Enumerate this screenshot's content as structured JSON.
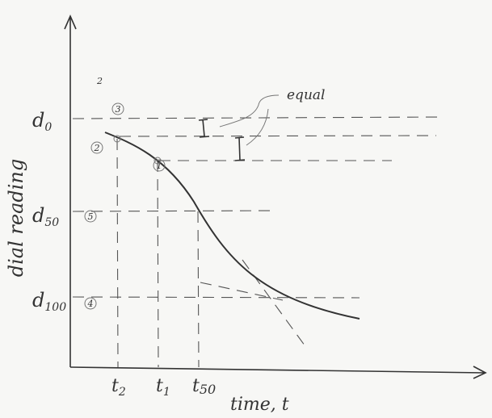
{
  "axes": {
    "y_label": "dial reading",
    "x_label": "time, t"
  },
  "y_labels": [
    {
      "main": "d",
      "sub": "0"
    },
    {
      "main": "d",
      "sub": "50"
    },
    {
      "main": "d",
      "sub": "100"
    }
  ],
  "x_labels": [
    {
      "main": "t",
      "sub": "2"
    },
    {
      "main": "t",
      "sub": "1"
    },
    {
      "main": "t",
      "sub": "50"
    }
  ],
  "markers": [
    "1",
    "2",
    "3",
    "4",
    "5"
  ],
  "annotation": "equal",
  "note": "2"
}
